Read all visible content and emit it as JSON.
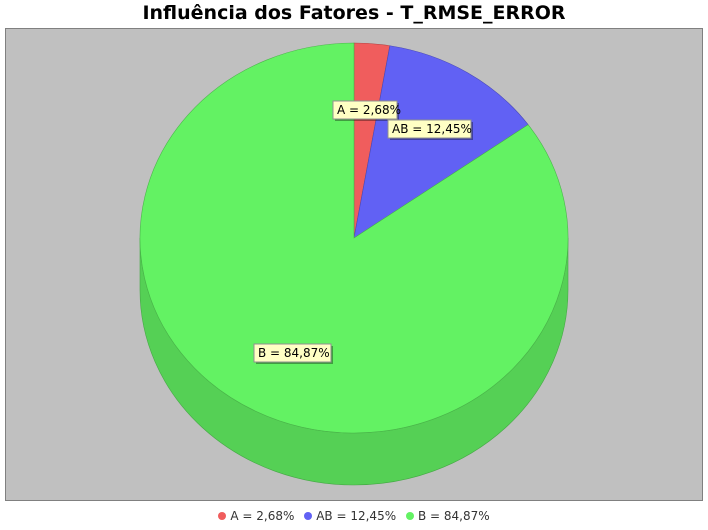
{
  "chart_data": {
    "type": "pie",
    "title": "Influência dos Fatores - T_RMSE_ERROR",
    "slices": [
      {
        "name": "A",
        "value": 2.68,
        "label": "A = 2,68%",
        "color": "#f05d5d"
      },
      {
        "name": "AB",
        "value": 12.45,
        "label": "AB = 12,45%",
        "color": "#6161f4"
      },
      {
        "name": "B",
        "value": 84.87,
        "label": "B = 84,87%",
        "color": "#63f263"
      }
    ],
    "legend_position": "bottom",
    "plot_background": "#c0c0c0",
    "style": "3d"
  }
}
